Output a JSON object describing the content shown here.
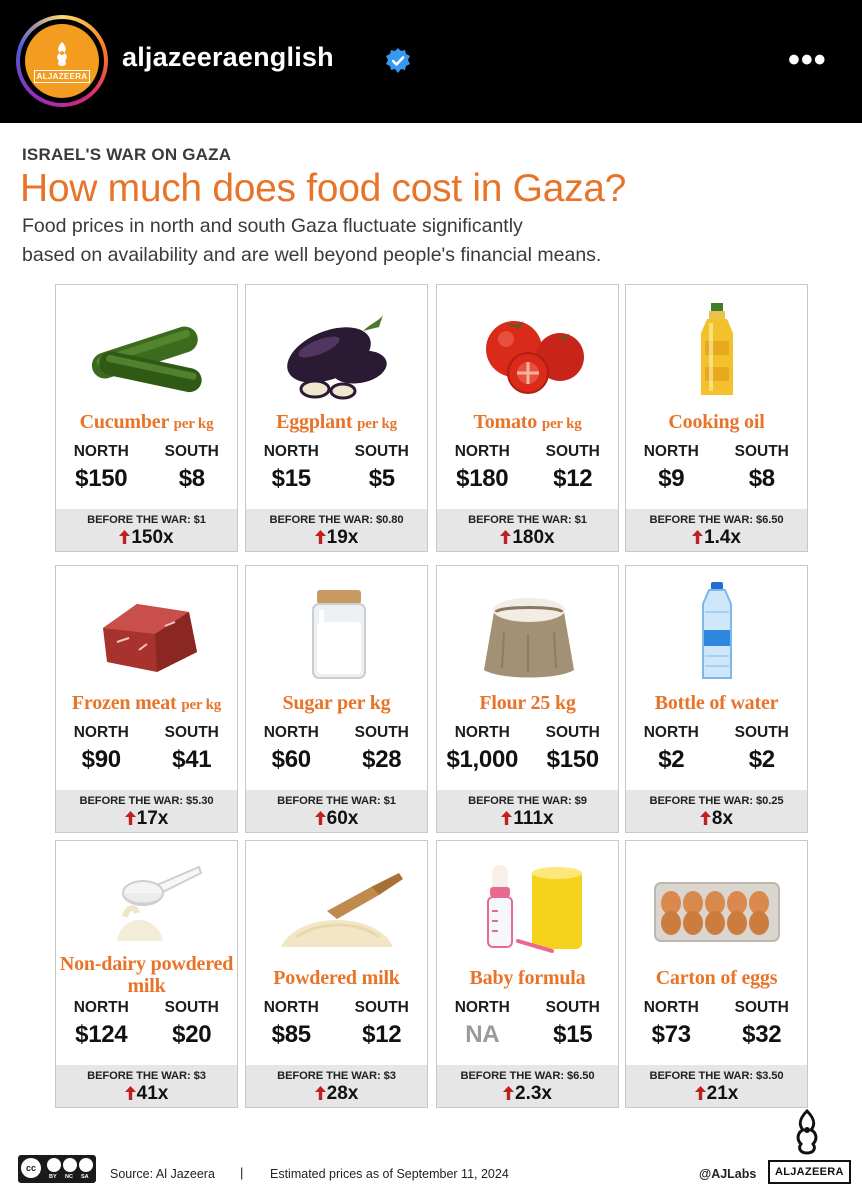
{
  "instagram": {
    "username": "aljazeeraenglish",
    "avatar_text": "ALJAZEERA",
    "more_label": "•••",
    "icons": [
      "aljazeera-logo",
      "verified-badge",
      "more-options"
    ]
  },
  "infographic": {
    "kicker": "ISRAEL'S WAR ON GAZA",
    "title": "How much does food cost in Gaza?",
    "subtitle_line1": "Food prices in north and south Gaza fluctuate significantly",
    "subtitle_line2": "based on availability and are well beyond people's financial means.",
    "region_north": "NORTH",
    "region_south": "SOUTH",
    "accent_color": "#e8742a",
    "increase_arrow_color": "#c0201f",
    "items": [
      {
        "name": "Cucumber",
        "unit": "per kg",
        "north": "$150",
        "south": "$8",
        "before": "BEFORE THE WAR: $1",
        "multiplier": "150x",
        "icon": "cucumber"
      },
      {
        "name": "Eggplant",
        "unit": "per kg",
        "north": "$15",
        "south": "$5",
        "before": "BEFORE THE WAR: $0.80",
        "multiplier": "19x",
        "icon": "eggplant"
      },
      {
        "name": "Tomato",
        "unit": "per kg",
        "north": "$180",
        "south": "$12",
        "before": "BEFORE THE WAR: $1",
        "multiplier": "180x",
        "icon": "tomato"
      },
      {
        "name": "Cooking oil",
        "unit": "",
        "north": "$9",
        "south": "$8",
        "before": "BEFORE THE WAR: $6.50",
        "multiplier": "1.4x",
        "icon": "oil-bottle"
      },
      {
        "name": "Frozen meat",
        "unit": "per kg",
        "north": "$90",
        "south": "$41",
        "before": "BEFORE THE WAR: $5.30",
        "multiplier": "17x",
        "icon": "meat"
      },
      {
        "name": "Sugar per kg",
        "unit": "",
        "north": "$60",
        "south": "$28",
        "before": "BEFORE THE WAR: $1",
        "multiplier": "60x",
        "icon": "sugar-jar"
      },
      {
        "name": "Flour 25 kg",
        "unit": "",
        "north": "$1,000",
        "south": "$150",
        "before": "BEFORE THE WAR: $9",
        "multiplier": "111x",
        "icon": "flour-sack"
      },
      {
        "name": "Bottle of water",
        "unit": "",
        "north": "$2",
        "south": "$2",
        "before": "BEFORE THE WAR: $0.25",
        "multiplier": "8x",
        "icon": "water-bottle"
      },
      {
        "name": "Non-dairy powdered milk",
        "unit": "",
        "north": "$124",
        "south": "$20",
        "before": "BEFORE THE WAR: $3",
        "multiplier": "41x",
        "icon": "powder-scoop"
      },
      {
        "name": "Powdered milk",
        "unit": "",
        "north": "$85",
        "south": "$12",
        "before": "BEFORE THE WAR: $3",
        "multiplier": "28x",
        "icon": "powder-pile"
      },
      {
        "name": "Baby formula",
        "unit": "",
        "north": "NA",
        "south": "$15",
        "before": "BEFORE THE WAR: $6.50",
        "multiplier": "2.3x",
        "icon": "baby-formula"
      },
      {
        "name": "Carton of eggs",
        "unit": "",
        "north": "$73",
        "south": "$32",
        "before": "BEFORE THE WAR: $3.50",
        "multiplier": "21x",
        "icon": "egg-carton"
      }
    ]
  },
  "footer": {
    "license": "cc",
    "license_labels": [
      "BY",
      "NC",
      "SA"
    ],
    "source": "Source:  Al Jazeera",
    "separator": "|",
    "date_note": "Estimated prices as of September 11, 2024",
    "handle": "@AJLabs",
    "brand": "ALJAZEERA"
  }
}
